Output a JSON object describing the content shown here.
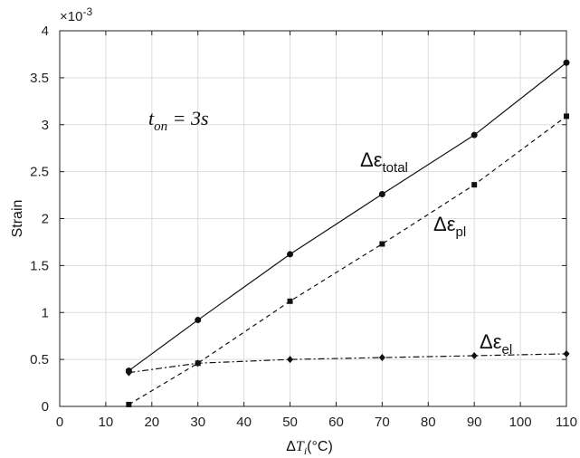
{
  "chart_data": {
    "type": "line",
    "xlabel": "ΔT_i(°C)",
    "xlabel_parts": {
      "delta": "Δ",
      "symbol": "T",
      "sub": "i",
      "unit": "(°C)"
    },
    "ylabel": "Strain",
    "y_exponent_label": "×10",
    "y_exponent_sup": "-3",
    "xlim": [
      0,
      110
    ],
    "ylim": [
      0,
      4
    ],
    "xticks": [
      0,
      10,
      20,
      30,
      40,
      50,
      60,
      70,
      80,
      90,
      100,
      110
    ],
    "yticks": [
      0,
      0.5,
      1,
      1.5,
      2,
      2.5,
      3,
      3.5,
      4
    ],
    "ytick_labels": [
      "0",
      "0.5",
      "1",
      "1.5",
      "2",
      "2.5",
      "3",
      "3.5",
      "4"
    ],
    "grid": true,
    "annotation": {
      "text": "t_on = 3s",
      "parts": {
        "main": "t",
        "sub": "on",
        "rest": " = 3s"
      }
    },
    "series": [
      {
        "key": "total",
        "name": "Δεtotal",
        "label_main": "Δε",
        "label_sub": "total",
        "line_style": "solid",
        "marker": "circle",
        "x": [
          15,
          30,
          50,
          70,
          90,
          110
        ],
        "values": [
          0.38,
          0.92,
          1.62,
          2.26,
          2.89,
          3.66
        ]
      },
      {
        "key": "pl",
        "name": "Δεpl",
        "label_main": "Δε",
        "label_sub": "pl",
        "line_style": "dashed",
        "marker": "square",
        "x": [
          15,
          30,
          50,
          70,
          90,
          110
        ],
        "values": [
          0.02,
          0.46,
          1.12,
          1.73,
          2.36,
          3.09
        ]
      },
      {
        "key": "el",
        "name": "Δεel",
        "label_main": "Δε",
        "label_sub": "el",
        "line_style": "dashdot",
        "marker": "diamond",
        "x": [
          15,
          30,
          50,
          70,
          90,
          110
        ],
        "values": [
          0.36,
          0.46,
          0.5,
          0.52,
          0.54,
          0.56
        ]
      }
    ],
    "colors": {
      "axis": "#222222",
      "grid": "#dddddd",
      "series": "#111111",
      "background": "#ffffff"
    }
  }
}
